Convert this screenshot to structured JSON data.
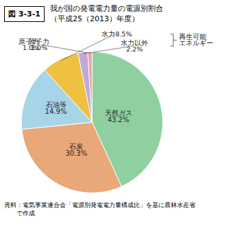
{
  "chart_data": {
    "type": "pie",
    "title": "我が国の発電電力量の電源別割合\n（平成25（2013）年度）",
    "categories": [
      "天然ガス",
      "石炭",
      "石油等",
      "水力",
      "水力以外",
      "原子力"
    ],
    "values": [
      43.2,
      30.3,
      14.9,
      8.5,
      2.2,
      1.0
    ],
    "value_labels": [
      "天然ガス\n43.2%",
      "石炭\n30.3%",
      "石油等\n14.9%",
      "水力8.5%",
      "水力以外\n2.2%",
      "原子力\n1.0%"
    ],
    "colors": [
      "#90d0a0",
      "#e8a878",
      "#a8d4e8",
      "#f0c040",
      "#c0a8d8",
      "#f0a0a8"
    ],
    "data_labels": true,
    "annotations": [
      "図 3-3-1",
      "再生可能\nエネルギー",
      "資料：電気事業連合会「電源別発電電力量構成比」を基に農林水産省\n　　で作成"
    ]
  }
}
